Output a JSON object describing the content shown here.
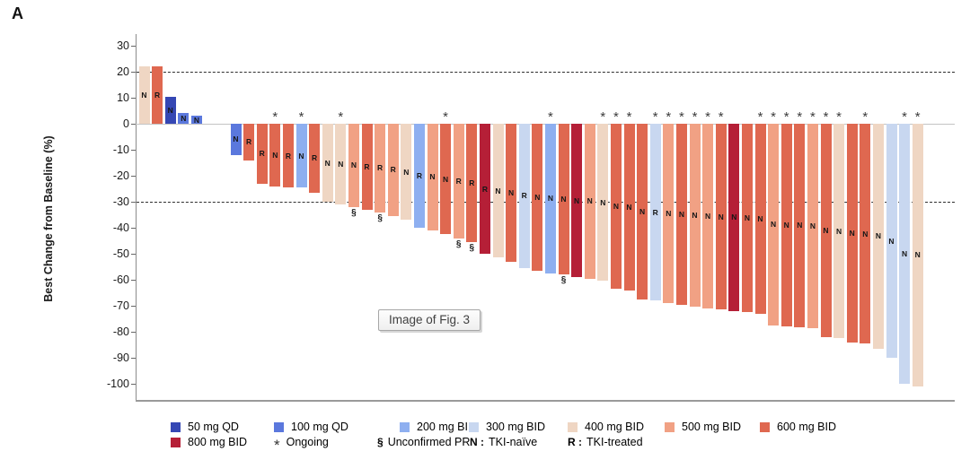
{
  "panel_label": "A",
  "figure_tooltip": "Image of Fig. 3",
  "chart_data": {
    "type": "bar",
    "subtype": "waterfall",
    "title": "",
    "xlabel": "",
    "ylabel": "Best Change from Baseline (%)",
    "ylim": [
      -100,
      30
    ],
    "yticks": [
      30,
      20,
      10,
      0,
      -10,
      -20,
      -30,
      -40,
      -50,
      -60,
      -70,
      -80,
      -90,
      -100
    ],
    "reference_lines": [
      20,
      -30
    ],
    "grid": "off",
    "legend_position": "bottom",
    "markers": {
      "ongoing": "*",
      "unconfirmed_pr": "§",
      "tki_naive": "N",
      "tki_treated": "R"
    },
    "doses": [
      {
        "id": "50",
        "label": "50 mg QD",
        "color": "#3547b4"
      },
      {
        "id": "100",
        "label": "100 mg QD",
        "color": "#5b78dd"
      },
      {
        "id": "200",
        "label": "200 mg BID",
        "color": "#8eaff0"
      },
      {
        "id": "300",
        "label": "300 mg BID",
        "color": "#c8d7f0"
      },
      {
        "id": "400",
        "label": "400 mg BID",
        "color": "#efd6c3"
      },
      {
        "id": "500",
        "label": "500 mg BID",
        "color": "#f1a184"
      },
      {
        "id": "600",
        "label": "600 mg BID",
        "color": "#df6850"
      },
      {
        "id": "800",
        "label": "800 mg BID",
        "color": "#b51f37"
      }
    ],
    "bars": [
      {
        "value": 22,
        "dose": "400",
        "status": "N"
      },
      {
        "value": 22,
        "dose": "600",
        "status": "R"
      },
      {
        "value": 10.5,
        "dose": "50",
        "status": "N"
      },
      {
        "value": 4,
        "dose": "100",
        "status": "N"
      },
      {
        "value": 3,
        "dose": "100",
        "status": "N"
      },
      {
        "value": -12,
        "dose": "100",
        "status": "N"
      },
      {
        "value": -14,
        "dose": "600",
        "status": "R"
      },
      {
        "value": -23,
        "dose": "600",
        "status": "R"
      },
      {
        "value": -24,
        "dose": "600",
        "status": "N",
        "ongoing": true
      },
      {
        "value": -24.5,
        "dose": "600",
        "status": "R"
      },
      {
        "value": -24.5,
        "dose": "200",
        "status": "N",
        "ongoing": true
      },
      {
        "value": -26.5,
        "dose": "600",
        "status": "R"
      },
      {
        "value": -30,
        "dose": "400",
        "status": "N"
      },
      {
        "value": -31,
        "dose": "400",
        "status": "N",
        "ongoing": true
      },
      {
        "value": -32,
        "dose": "500",
        "status": "N",
        "pr": true
      },
      {
        "value": -33,
        "dose": "600",
        "status": "R"
      },
      {
        "value": -34,
        "dose": "500",
        "status": "R",
        "pr": true
      },
      {
        "value": -35.5,
        "dose": "500",
        "status": "R"
      },
      {
        "value": -37,
        "dose": "400",
        "status": "N"
      },
      {
        "value": -40,
        "dose": "200",
        "status": "R"
      },
      {
        "value": -41,
        "dose": "500",
        "status": "N"
      },
      {
        "value": -42.5,
        "dose": "600",
        "status": "N",
        "ongoing": true
      },
      {
        "value": -44,
        "dose": "500",
        "status": "R",
        "pr": true
      },
      {
        "value": -45.5,
        "dose": "600",
        "status": "R",
        "pr": true
      },
      {
        "value": -50,
        "dose": "800",
        "status": "R"
      },
      {
        "value": -51.5,
        "dose": "400",
        "status": "N"
      },
      {
        "value": -53,
        "dose": "600",
        "status": "N"
      },
      {
        "value": -55.5,
        "dose": "300",
        "status": "R"
      },
      {
        "value": -56.5,
        "dose": "600",
        "status": "N"
      },
      {
        "value": -57.5,
        "dose": "200",
        "status": "N",
        "ongoing": true
      },
      {
        "value": -58,
        "dose": "600",
        "status": "N",
        "pr": true
      },
      {
        "value": -59,
        "dose": "800",
        "status": "N"
      },
      {
        "value": -59.5,
        "dose": "500",
        "status": "N"
      },
      {
        "value": -60.5,
        "dose": "400",
        "status": "N",
        "ongoing": true
      },
      {
        "value": -63.5,
        "dose": "600",
        "status": "N",
        "ongoing": true
      },
      {
        "value": -64,
        "dose": "600",
        "status": "N",
        "ongoing": true
      },
      {
        "value": -67.5,
        "dose": "600",
        "status": "N"
      },
      {
        "value": -68,
        "dose": "300",
        "status": "R",
        "ongoing": true
      },
      {
        "value": -69,
        "dose": "500",
        "status": "N",
        "ongoing": true
      },
      {
        "value": -69.5,
        "dose": "600",
        "status": "N",
        "ongoing": true
      },
      {
        "value": -70.5,
        "dose": "500",
        "status": "N",
        "ongoing": true
      },
      {
        "value": -71,
        "dose": "500",
        "status": "N",
        "ongoing": true
      },
      {
        "value": -71.5,
        "dose": "600",
        "status": "N",
        "ongoing": true
      },
      {
        "value": -72,
        "dose": "800",
        "status": "N"
      },
      {
        "value": -72.5,
        "dose": "600",
        "status": "N"
      },
      {
        "value": -73,
        "dose": "600",
        "status": "N",
        "ongoing": true
      },
      {
        "value": -77.5,
        "dose": "500",
        "status": "N",
        "ongoing": true
      },
      {
        "value": -78,
        "dose": "600",
        "status": "N",
        "ongoing": true
      },
      {
        "value": -78.2,
        "dose": "600",
        "status": "N",
        "ongoing": true
      },
      {
        "value": -78.5,
        "dose": "500",
        "status": "N",
        "ongoing": true
      },
      {
        "value": -82,
        "dose": "600",
        "status": "N",
        "ongoing": true
      },
      {
        "value": -82.5,
        "dose": "400",
        "status": "N",
        "ongoing": true
      },
      {
        "value": -84,
        "dose": "600",
        "status": "N"
      },
      {
        "value": -84.5,
        "dose": "600",
        "status": "N",
        "ongoing": true
      },
      {
        "value": -86.5,
        "dose": "400",
        "status": "N"
      },
      {
        "value": -90,
        "dose": "300",
        "status": "N"
      },
      {
        "value": -100,
        "dose": "300",
        "status": "N",
        "ongoing": true
      },
      {
        "value": -101,
        "dose": "400",
        "status": "N",
        "ongoing": true
      }
    ],
    "gap_after_index": 4
  },
  "legend": {
    "row1": [
      "50 mg QD",
      "100 mg QD",
      "200 mg BID",
      "300 mg BID",
      "400 mg BID",
      "500 mg BID",
      "600 mg BID"
    ],
    "row2": [
      {
        "type": "chip",
        "dose": "800",
        "label": "800 mg BID"
      },
      {
        "type": "symbol",
        "symbol": "*",
        "label": "Ongoing"
      },
      {
        "type": "symbol",
        "symbol": "§",
        "label": "Unconfirmed PR"
      },
      {
        "type": "text",
        "symbol": "N :",
        "label": "TKI-naïve"
      },
      {
        "type": "text",
        "symbol": "R :",
        "label": "TKI-treated"
      }
    ]
  }
}
